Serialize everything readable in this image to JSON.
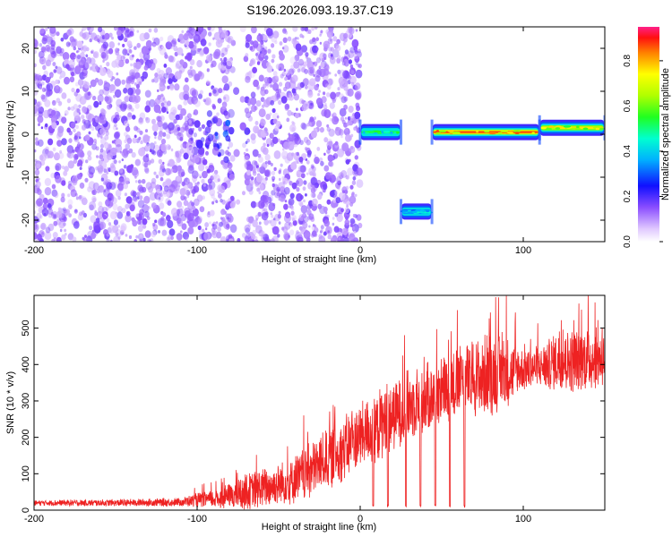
{
  "title": "S196.2026.093.19.37.C19",
  "chart_data": [
    {
      "type": "heatmap",
      "title": "S196.2026.093.19.37.C19",
      "xlabel": "Height of straight line (km)",
      "ylabel": "Frequency (Hz)",
      "xlim": [
        -200,
        150
      ],
      "ylim": [
        -25,
        25
      ],
      "x_ticks": [
        -200,
        -100,
        0,
        100
      ],
      "y_ticks": [
        -20,
        -10,
        0,
        10,
        20
      ],
      "colorbar": {
        "label": "Normalized spectral amplitude",
        "range": [
          0,
          0.95
        ],
        "ticks": [
          "0.0",
          "0.2",
          "0.4",
          "0.6",
          "0.8"
        ],
        "tick_values": [
          0.0,
          0.2,
          0.4,
          0.6,
          0.8
        ]
      },
      "noise_region": {
        "x_range": [
          -200,
          0
        ],
        "freq_range": [
          -25,
          25
        ],
        "amplitude": 0.08
      },
      "noise_gap": {
        "x_range": [
          -78,
          -70
        ]
      },
      "noise_cluster": {
        "x_center": -85,
        "freq_center": 0,
        "amplitude": 0.15
      },
      "bands": [
        {
          "x_start": 0,
          "x_end": 25,
          "freq": 0.5,
          "amplitude": 0.55
        },
        {
          "x_start": 25,
          "x_end": 44,
          "freq": -18,
          "amplitude": 0.45
        },
        {
          "x_start": 44,
          "x_end": 110,
          "freq": 0.5,
          "amplitude": 0.9
        },
        {
          "x_start": 110,
          "x_end": 150,
          "freq": 1.5,
          "amplitude": 0.8
        }
      ]
    },
    {
      "type": "line",
      "xlabel": "Height of straight line (km)",
      "ylabel": "SNR (10 * v/v)",
      "xlim": [
        -200,
        150
      ],
      "ylim": [
        0,
        590
      ],
      "x_ticks": [
        -200,
        -100,
        0,
        100
      ],
      "y_ticks": [
        0,
        100,
        200,
        300,
        400,
        500
      ],
      "series": [
        {
          "name": "SNR",
          "color": "#ee2222",
          "x": [
            -200,
            -150,
            -110,
            -100,
            -90,
            -80,
            -70,
            -60,
            -50,
            -40,
            -30,
            -20,
            -10,
            0,
            10,
            20,
            30,
            40,
            50,
            60,
            70,
            80,
            90,
            100,
            110,
            120,
            130,
            140,
            150
          ],
          "mean": [
            20,
            20,
            22,
            28,
            30,
            38,
            50,
            60,
            70,
            85,
            110,
            140,
            170,
            200,
            230,
            260,
            290,
            310,
            330,
            350,
            360,
            375,
            380,
            385,
            395,
            405,
            410,
            415,
            420
          ],
          "amp": [
            8,
            10,
            12,
            20,
            25,
            35,
            50,
            55,
            60,
            70,
            80,
            85,
            90,
            95,
            100,
            100,
            100,
            95,
            95,
            100,
            110,
            120,
            100,
            60,
            60,
            80,
            90,
            90,
            80
          ],
          "dips": [
            8,
            17,
            28,
            37,
            46,
            55,
            64
          ]
        }
      ]
    }
  ]
}
